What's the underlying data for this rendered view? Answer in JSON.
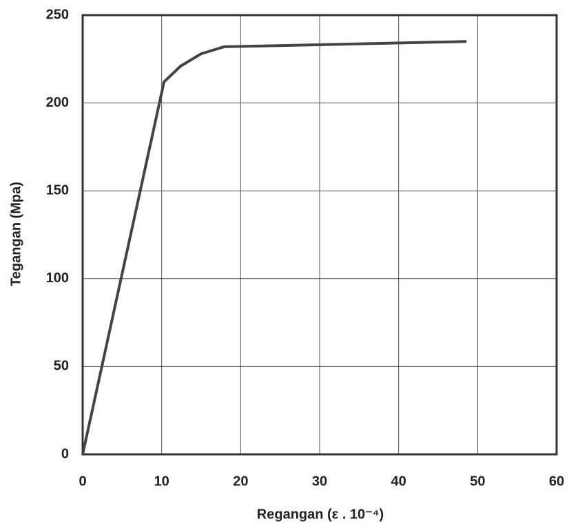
{
  "chart_data": {
    "type": "line",
    "xlabel": "Regangan (ε . 10⁻⁴)",
    "ylabel": "Tegangan (Mpa)",
    "x": [
      0,
      10.3,
      12.4,
      15.0,
      17.9,
      48.6
    ],
    "values": [
      0,
      212,
      221,
      228,
      232,
      235
    ],
    "color": "#444444",
    "xlim": [
      0,
      60
    ],
    "xticks": [
      0,
      10,
      20,
      30,
      40,
      50,
      60
    ],
    "ylim": [
      0,
      250
    ],
    "yticks": [
      0,
      50,
      100,
      150,
      200,
      250
    ],
    "grid": true
  }
}
